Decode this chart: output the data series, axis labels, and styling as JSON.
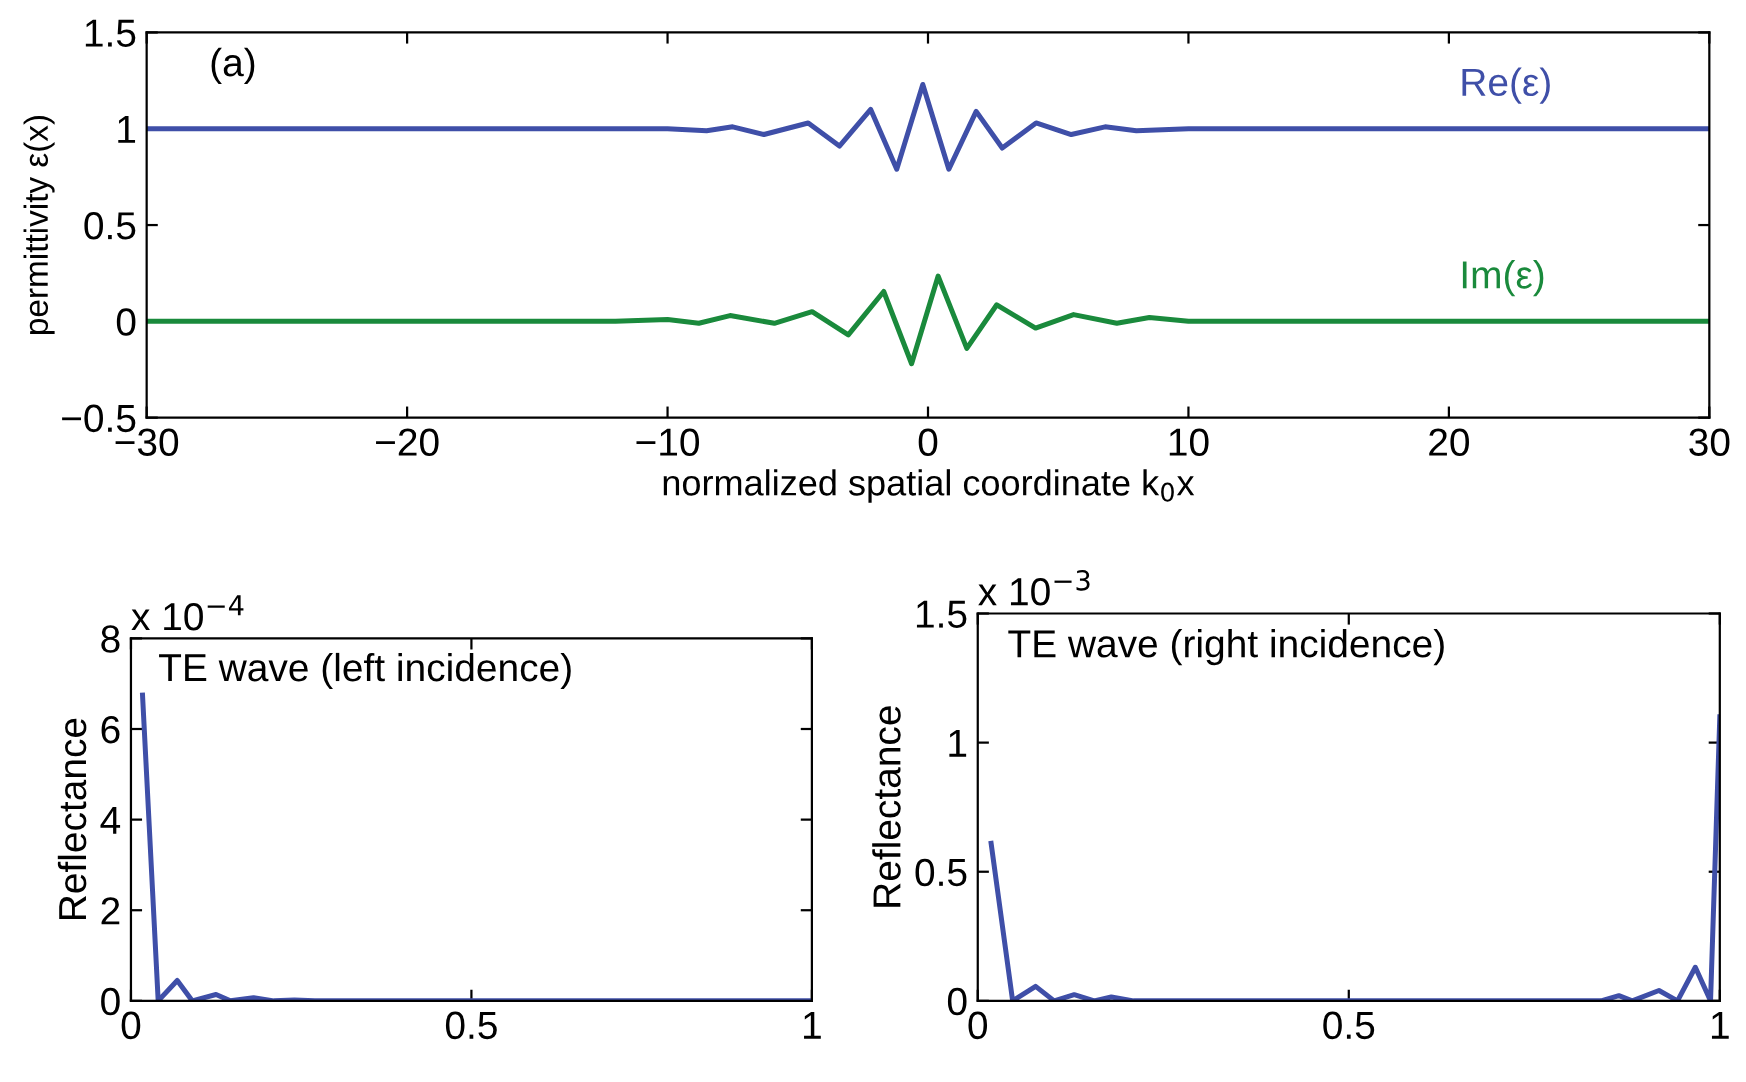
{
  "chart_data": [
    {
      "type": "line",
      "xlabel": "normalized spatial coordinate k$_{0}$x",
      "ylabel": "permittivity ε(x)",
      "annotations": [
        "(a)"
      ],
      "xlim": [
        -30,
        30
      ],
      "ylim": [
        -0.5,
        1.5
      ],
      "xticks": [
        {
          "value": -30,
          "label": "−30"
        },
        {
          "value": -20,
          "label": "−20"
        },
        {
          "value": -10,
          "label": "−10"
        },
        0,
        10,
        20,
        30
      ],
      "yticks": [
        {
          "value": -0.5,
          "label": "−0.5"
        },
        0,
        0.5,
        1,
        1.5
      ],
      "series": [
        {
          "name": "Re(ε)",
          "color": "#3f4fa8",
          "x": [
            -30,
            -20,
            -14,
            -12,
            -10,
            -8.5,
            -7.5,
            -6.3,
            -4.6,
            -3.4,
            -2.2,
            -1.2,
            -0.2,
            0.8,
            1.85,
            2.85,
            4.15,
            5.5,
            6.8,
            8,
            10,
            12,
            14,
            20,
            30
          ],
          "values": [
            1,
            1,
            1,
            1,
            1,
            0.99,
            1.01,
            0.97,
            1.03,
            0.91,
            1.1,
            0.79,
            1.23,
            0.79,
            1.09,
            0.9,
            1.03,
            0.97,
            1.01,
            0.99,
            1,
            1,
            1,
            1,
            1
          ]
        },
        {
          "name": "Im(ε)",
          "color": "#1a8a3c",
          "x": [
            -30,
            -20,
            -12,
            -10,
            -8.8,
            -7.6,
            -5.9,
            -4.45,
            -3.06,
            -1.7,
            -0.63,
            0.39,
            1.49,
            2.64,
            4.13,
            5.59,
            7.25,
            8.5,
            10,
            12,
            20,
            30
          ],
          "values": [
            0,
            0,
            0,
            0.01,
            -0.01,
            0.03,
            -0.01,
            0.05,
            -0.07,
            0.155,
            -0.22,
            0.235,
            -0.14,
            0.086,
            -0.035,
            0.035,
            -0.01,
            0.02,
            0,
            0,
            0,
            0
          ]
        }
      ]
    },
    {
      "type": "line",
      "ylabel": "Reflectance",
      "annotations": [
        "x 10$^{−4}$",
        "TE wave (left incidence)"
      ],
      "xlim": [
        0,
        1
      ],
      "ylim": [
        0,
        8
      ],
      "xticks": [
        0,
        0.5,
        1
      ],
      "yticks": [
        0,
        2,
        4,
        6,
        8
      ],
      "series": [
        {
          "color": "#3f4fa8",
          "x": [
            0.017,
            0.04,
            0.068,
            0.09,
            0.125,
            0.146,
            0.18,
            0.21,
            0.24,
            0.27,
            0.35,
            1.0
          ],
          "values": [
            6.75,
            0,
            0.45,
            0,
            0.14,
            0,
            0.07,
            0,
            0.02,
            0,
            0,
            0
          ]
        }
      ]
    },
    {
      "type": "line",
      "ylabel": "Reflectance",
      "annotations": [
        "x 10$^{−3}$",
        "TE wave (right incidence)"
      ],
      "xlim": [
        0,
        1
      ],
      "ylim": [
        0,
        1.5
      ],
      "xticks": [
        0,
        0.5,
        1
      ],
      "yticks": [
        0,
        0.5,
        1,
        1.5
      ],
      "series": [
        {
          "color": "#3f4fa8",
          "x": [
            0.018,
            0.047,
            0.078,
            0.103,
            0.13,
            0.157,
            0.18,
            0.21,
            0.5,
            0.84,
            0.864,
            0.882,
            0.918,
            0.943,
            0.967,
            0.9875,
            1.0
          ],
          "values": [
            0.61,
            0,
            0.056,
            0,
            0.024,
            0,
            0.015,
            0,
            0,
            0,
            0.02,
            0,
            0.04,
            0,
            0.13,
            0,
            1.1
          ]
        }
      ]
    }
  ]
}
